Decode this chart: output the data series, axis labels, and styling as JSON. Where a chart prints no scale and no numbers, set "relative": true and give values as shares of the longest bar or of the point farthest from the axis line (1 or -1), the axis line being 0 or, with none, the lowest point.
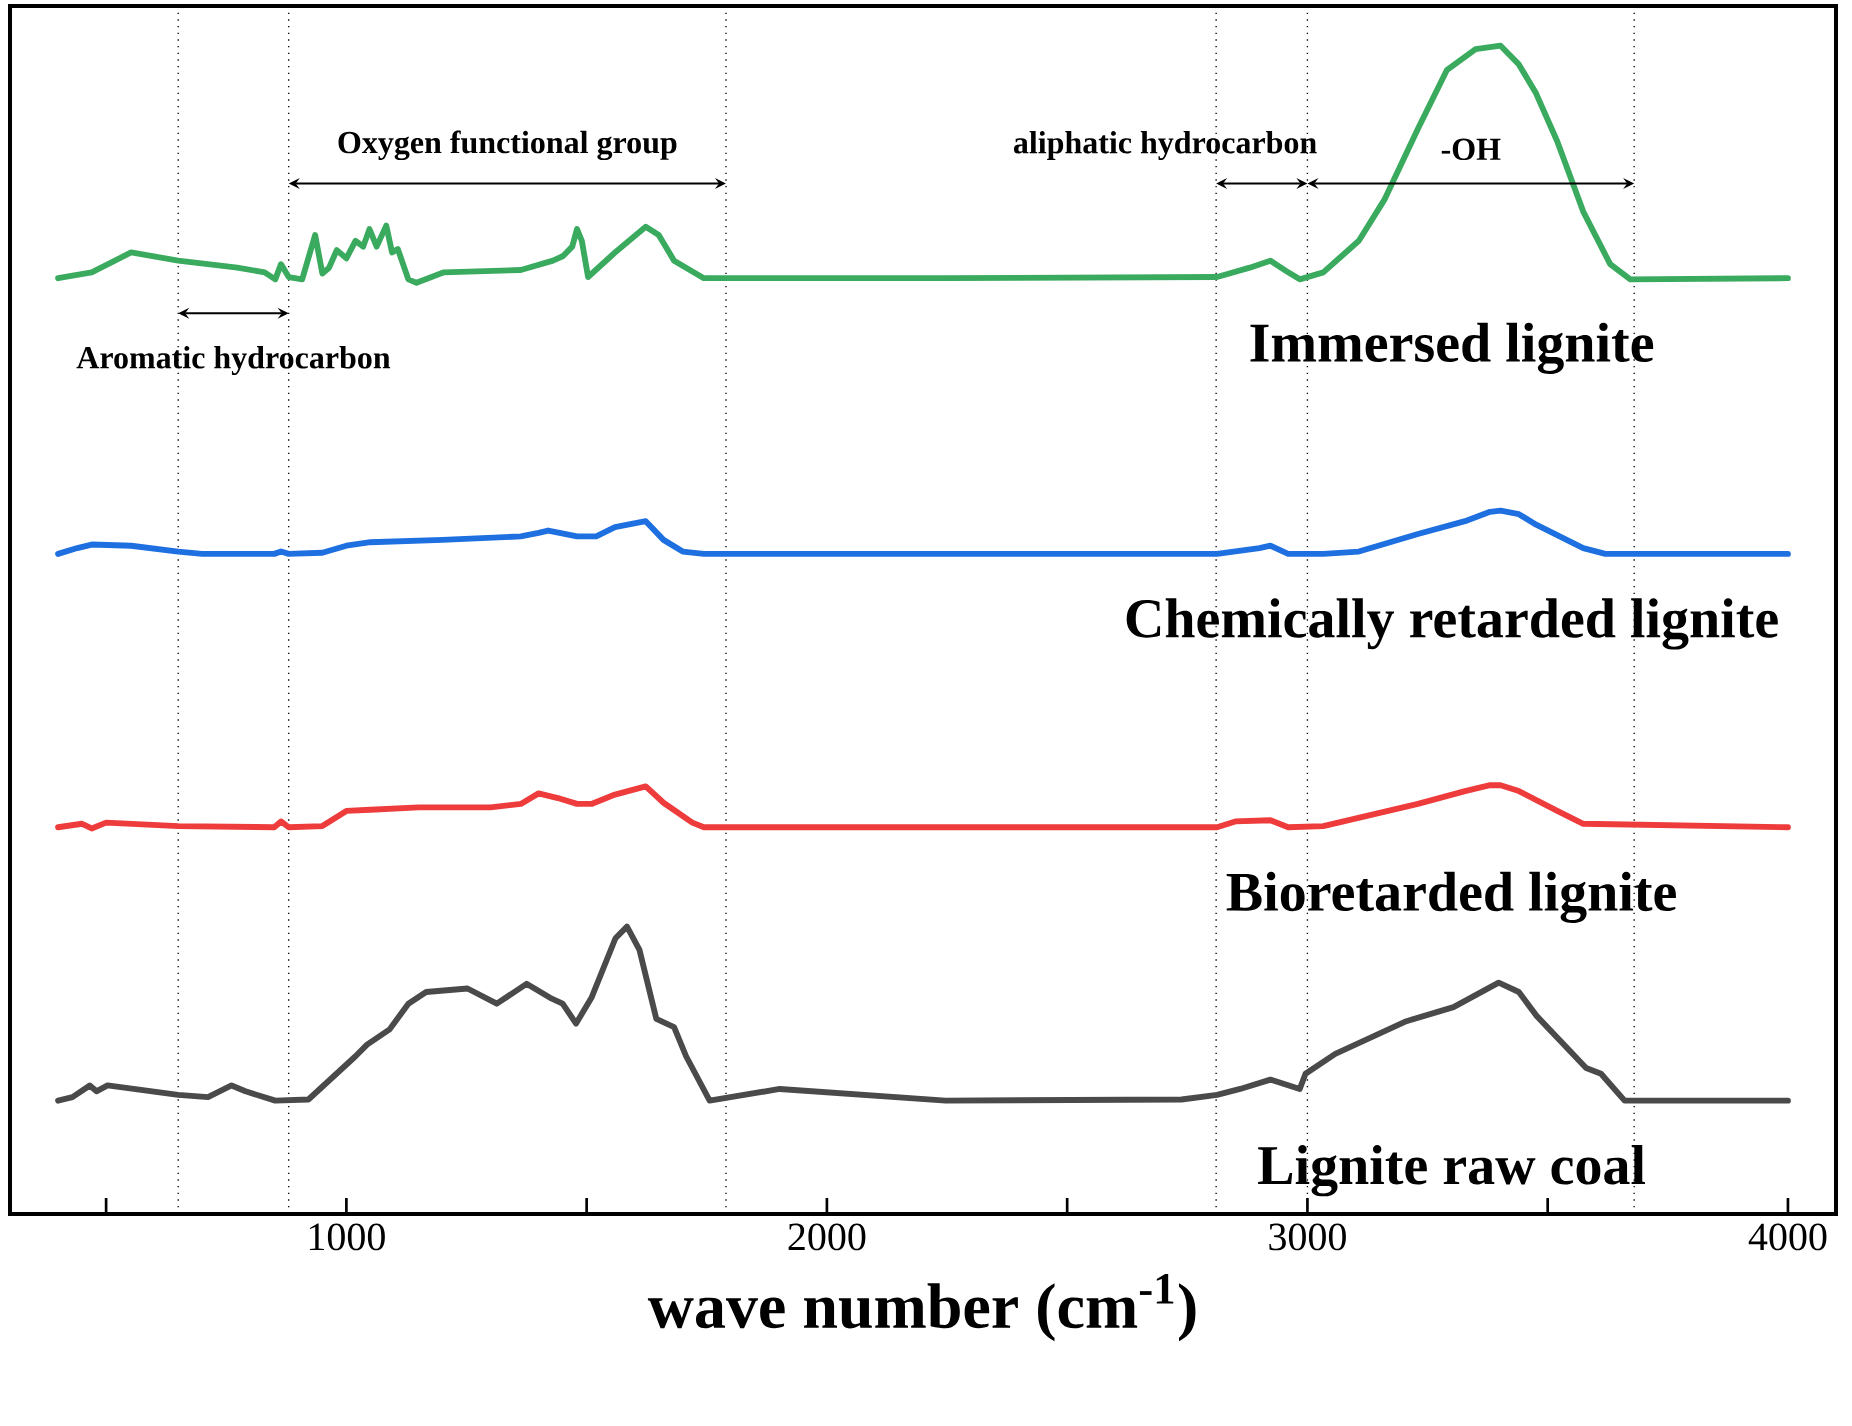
{
  "chart_data": {
    "type": "line",
    "relative": true,
    "xlabel": "wave number (cm$^{-1}$)",
    "xlim": [
      300,
      4100
    ],
    "xticks": [
      {
        "value": 500,
        "label": null
      },
      1000,
      {
        "value": 1500,
        "label": null
      },
      2000,
      {
        "value": 2500,
        "label": null
      },
      3000,
      {
        "value": 3500,
        "label": null
      },
      4000
    ],
    "line_style": "solid",
    "marker": "none",
    "series": [
      {
        "name": "Immersed lignite",
        "color": "#3aaa5e",
        "x": [
          400,
          470,
          552,
          650,
          773,
          830,
          852,
          864,
          880,
          908,
          935,
          950,
          964,
          980,
          1000,
          1019,
          1035,
          1048,
          1063,
          1083,
          1095,
          1107,
          1129,
          1146,
          1203,
          1363,
          1430,
          1451,
          1470,
          1480,
          1490,
          1503,
          1559,
          1623,
          1650,
          1682,
          1744,
          1785,
          2247,
          2812,
          2880,
          2923,
          2960,
          2984,
          3033,
          3107,
          3160,
          3230,
          3290,
          3350,
          3402,
          3440,
          3476,
          3520,
          3574,
          3630,
          3672,
          4000
        ],
        "values": [
          0.801,
          0.806,
          0.823,
          0.816,
          0.81,
          0.806,
          0.8,
          0.813,
          0.802,
          0.8,
          0.838,
          0.805,
          0.81,
          0.825,
          0.818,
          0.833,
          0.828,
          0.843,
          0.828,
          0.846,
          0.823,
          0.826,
          0.8,
          0.797,
          0.806,
          0.808,
          0.816,
          0.82,
          0.828,
          0.843,
          0.833,
          0.802,
          0.823,
          0.845,
          0.838,
          0.816,
          0.801,
          0.801,
          0.801,
          0.802,
          0.81,
          0.816,
          0.806,
          0.8,
          0.806,
          0.833,
          0.868,
          0.929,
          0.979,
          0.997,
          1,
          0.984,
          0.959,
          0.918,
          0.858,
          0.813,
          0.8,
          0.801
        ]
      },
      {
        "name": "Chemically retarded lignite",
        "color": "#1e6fe0",
        "x": [
          400,
          440,
          470,
          552,
          650,
          700,
          850,
          864,
          880,
          950,
          1000,
          1050,
          1200,
          1363,
          1400,
          1420,
          1480,
          1520,
          1559,
          1623,
          1660,
          1700,
          1744,
          2200,
          2812,
          2900,
          2923,
          2960,
          3033,
          3107,
          3230,
          3328,
          3380,
          3402,
          3440,
          3476,
          3574,
          3620,
          4000
        ],
        "values": [
          0.565,
          0.57,
          0.573,
          0.572,
          0.567,
          0.565,
          0.565,
          0.567,
          0.565,
          0.566,
          0.572,
          0.575,
          0.577,
          0.58,
          0.583,
          0.585,
          0.58,
          0.58,
          0.588,
          0.593,
          0.577,
          0.567,
          0.565,
          0.565,
          0.565,
          0.57,
          0.572,
          0.565,
          0.565,
          0.567,
          0.582,
          0.593,
          0.601,
          0.602,
          0.599,
          0.59,
          0.57,
          0.565,
          0.565
        ]
      },
      {
        "name": "Bioretarded lignite",
        "color": "#ee3b3b",
        "x": [
          400,
          450,
          470,
          500,
          650,
          850,
          864,
          880,
          950,
          1000,
          1050,
          1150,
          1300,
          1363,
          1400,
          1440,
          1480,
          1510,
          1559,
          1623,
          1660,
          1720,
          1744,
          2200,
          2812,
          2850,
          2923,
          2960,
          3033,
          3230,
          3328,
          3380,
          3402,
          3440,
          3520,
          3574,
          4000
        ],
        "values": [
          0.331,
          0.334,
          0.33,
          0.335,
          0.332,
          0.331,
          0.336,
          0.331,
          0.332,
          0.345,
          0.346,
          0.348,
          0.348,
          0.351,
          0.36,
          0.356,
          0.351,
          0.351,
          0.359,
          0.366,
          0.352,
          0.335,
          0.331,
          0.331,
          0.331,
          0.336,
          0.337,
          0.331,
          0.332,
          0.351,
          0.362,
          0.367,
          0.367,
          0.362,
          0.345,
          0.334,
          0.331
        ]
      },
      {
        "name": "Lignite raw coal",
        "color": "#4a4a4a",
        "x": [
          400,
          430,
          466,
          480,
          503,
          650,
          712,
          761,
          790,
          852,
          921,
          1019,
          1043,
          1090,
          1129,
          1166,
          1252,
          1313,
          1375,
          1424,
          1450,
          1478,
          1510,
          1560,
          1584,
          1610,
          1645,
          1682,
          1707,
          1756,
          1902,
          2247,
          2738,
          2812,
          2860,
          2923,
          2984,
          2996,
          3058,
          3206,
          3304,
          3398,
          3440,
          3476,
          3580,
          3611,
          3660,
          4000
        ],
        "values": [
          0.097,
          0.1,
          0.11,
          0.105,
          0.11,
          0.102,
          0.1,
          0.11,
          0.105,
          0.097,
          0.098,
          0.135,
          0.145,
          0.158,
          0.18,
          0.19,
          0.193,
          0.18,
          0.197,
          0.185,
          0.18,
          0.163,
          0.185,
          0.236,
          0.246,
          0.226,
          0.167,
          0.16,
          0.135,
          0.097,
          0.107,
          0.097,
          0.098,
          0.102,
          0.107,
          0.115,
          0.107,
          0.12,
          0.137,
          0.165,
          0.177,
          0.198,
          0.19,
          0.17,
          0.125,
          0.12,
          0.097,
          0.097
        ]
      }
    ],
    "ref_lines": [
      {
        "axis": "x",
        "value": 650,
        "line_style": "dotted"
      },
      {
        "axis": "x",
        "value": 880,
        "line_style": "dotted"
      },
      {
        "axis": "x",
        "value": 1790,
        "line_style": "dotted"
      },
      {
        "axis": "x",
        "value": 2810,
        "line_style": "dotted"
      },
      {
        "axis": "x",
        "value": 3000,
        "line_style": "dotted"
      },
      {
        "axis": "x",
        "value": 3680,
        "line_style": "dotted"
      }
    ],
    "annotations": [
      "Aromatic hydrocarbon",
      "Oxygen functional group",
      "aliphatic hydrocarbon",
      "-OH"
    ]
  }
}
